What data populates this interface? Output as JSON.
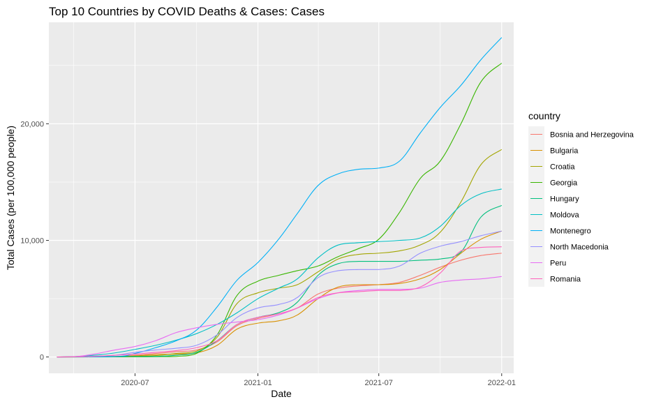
{
  "chart_data": {
    "type": "line",
    "title": "Top 10 Countries by COVID Deaths & Cases: Cases",
    "xlabel": "Date",
    "ylabel": "Total Cases (per 100,000 people)",
    "x_type": "date",
    "xlim": [
      "2020-02-23",
      "2022-01-19"
    ],
    "ylim": [
      -1400,
      28700
    ],
    "x_ticks": [
      {
        "value": "2020-07-01",
        "label": "2020-07"
      },
      {
        "value": "2021-01-01",
        "label": "2021-01"
      },
      {
        "value": "2021-07-01",
        "label": "2021-07"
      },
      {
        "value": "2022-01-01",
        "label": "2022-01"
      }
    ],
    "y_ticks": [
      {
        "value": 0,
        "label": "0"
      },
      {
        "value": 10000,
        "label": "10,000"
      },
      {
        "value": 20000,
        "label": "20,000"
      }
    ],
    "grid": true,
    "panel_background": "#ebebeb",
    "grid_color": "#ffffff",
    "legend": {
      "title": "country",
      "position": "right"
    },
    "series": [
      {
        "name": "Bosnia and Herzegovina",
        "color": "#F8766D",
        "points": [
          [
            "2020-03-06",
            0
          ],
          [
            "2020-06-01",
            50
          ],
          [
            "2020-07-01",
            150
          ],
          [
            "2020-08-01",
            300
          ],
          [
            "2020-09-01",
            450
          ],
          [
            "2020-10-01",
            600
          ],
          [
            "2020-11-01",
            1300
          ],
          [
            "2020-12-01",
            2700
          ],
          [
            "2021-01-01",
            3300
          ],
          [
            "2021-02-01",
            3700
          ],
          [
            "2021-03-01",
            4200
          ],
          [
            "2021-04-01",
            5400
          ],
          [
            "2021-05-01",
            5900
          ],
          [
            "2021-06-01",
            6100
          ],
          [
            "2021-07-01",
            6200
          ],
          [
            "2021-08-01",
            6400
          ],
          [
            "2021-09-01",
            7000
          ],
          [
            "2021-10-01",
            7700
          ],
          [
            "2021-11-01",
            8300
          ],
          [
            "2021-12-01",
            8700
          ],
          [
            "2022-01-01",
            8900
          ]
        ]
      },
      {
        "name": "Bulgaria",
        "color": "#D89000",
        "points": [
          [
            "2020-03-06",
            0
          ],
          [
            "2020-06-01",
            30
          ],
          [
            "2020-07-01",
            100
          ],
          [
            "2020-08-01",
            200
          ],
          [
            "2020-09-01",
            250
          ],
          [
            "2020-10-01",
            350
          ],
          [
            "2020-11-01",
            1000
          ],
          [
            "2020-12-01",
            2400
          ],
          [
            "2021-01-01",
            2900
          ],
          [
            "2021-02-01",
            3100
          ],
          [
            "2021-03-01",
            3600
          ],
          [
            "2021-04-01",
            5000
          ],
          [
            "2021-05-01",
            6000
          ],
          [
            "2021-06-01",
            6200
          ],
          [
            "2021-07-01",
            6200
          ],
          [
            "2021-08-01",
            6300
          ],
          [
            "2021-09-01",
            6700
          ],
          [
            "2021-10-01",
            7500
          ],
          [
            "2021-11-01",
            8900
          ],
          [
            "2021-12-01",
            10100
          ],
          [
            "2022-01-01",
            10800
          ]
        ]
      },
      {
        "name": "Croatia",
        "color": "#A3A500",
        "points": [
          [
            "2020-03-06",
            0
          ],
          [
            "2020-06-01",
            20
          ],
          [
            "2020-07-01",
            50
          ],
          [
            "2020-08-01",
            120
          ],
          [
            "2020-09-01",
            300
          ],
          [
            "2020-10-01",
            500
          ],
          [
            "2020-11-01",
            1700
          ],
          [
            "2020-12-01",
            4600
          ],
          [
            "2021-01-01",
            5500
          ],
          [
            "2021-02-01",
            5900
          ],
          [
            "2021-03-01",
            6200
          ],
          [
            "2021-04-01",
            7300
          ],
          [
            "2021-05-01",
            8400
          ],
          [
            "2021-06-01",
            8800
          ],
          [
            "2021-07-01",
            8900
          ],
          [
            "2021-08-01",
            9100
          ],
          [
            "2021-09-01",
            9600
          ],
          [
            "2021-10-01",
            10700
          ],
          [
            "2021-11-01",
            13300
          ],
          [
            "2021-12-01",
            16500
          ],
          [
            "2022-01-01",
            17800
          ]
        ]
      },
      {
        "name": "Georgia",
        "color": "#39B600",
        "points": [
          [
            "2020-03-06",
            0
          ],
          [
            "2020-06-01",
            10
          ],
          [
            "2020-07-01",
            15
          ],
          [
            "2020-08-01",
            25
          ],
          [
            "2020-09-01",
            50
          ],
          [
            "2020-10-01",
            300
          ],
          [
            "2020-11-01",
            1900
          ],
          [
            "2020-12-01",
            5300
          ],
          [
            "2021-01-01",
            6500
          ],
          [
            "2021-02-01",
            7000
          ],
          [
            "2021-03-01",
            7400
          ],
          [
            "2021-04-01",
            7800
          ],
          [
            "2021-05-01",
            8600
          ],
          [
            "2021-06-01",
            9300
          ],
          [
            "2021-07-01",
            10100
          ],
          [
            "2021-08-01",
            12400
          ],
          [
            "2021-09-01",
            15300
          ],
          [
            "2021-10-01",
            16800
          ],
          [
            "2021-11-01",
            20000
          ],
          [
            "2021-12-01",
            23600
          ],
          [
            "2022-01-01",
            25200
          ]
        ]
      },
      {
        "name": "Hungary",
        "color": "#00BF7D",
        "points": [
          [
            "2020-03-06",
            0
          ],
          [
            "2020-06-01",
            40
          ],
          [
            "2020-07-01",
            45
          ],
          [
            "2020-08-01",
            50
          ],
          [
            "2020-09-01",
            150
          ],
          [
            "2020-10-01",
            400
          ],
          [
            "2020-11-01",
            1400
          ],
          [
            "2020-12-01",
            2800
          ],
          [
            "2021-01-01",
            3400
          ],
          [
            "2021-02-01",
            3800
          ],
          [
            "2021-03-01",
            4700
          ],
          [
            "2021-04-01",
            7000
          ],
          [
            "2021-05-01",
            8000
          ],
          [
            "2021-06-01",
            8200
          ],
          [
            "2021-07-01",
            8200
          ],
          [
            "2021-08-01",
            8200
          ],
          [
            "2021-09-01",
            8300
          ],
          [
            "2021-10-01",
            8400
          ],
          [
            "2021-11-01",
            9000
          ],
          [
            "2021-12-01",
            12000
          ],
          [
            "2022-01-01",
            13000
          ]
        ]
      },
      {
        "name": "Moldova",
        "color": "#00BFC4",
        "points": [
          [
            "2020-03-06",
            0
          ],
          [
            "2020-04-01",
            30
          ],
          [
            "2020-05-01",
            150
          ],
          [
            "2020-06-01",
            350
          ],
          [
            "2020-07-01",
            650
          ],
          [
            "2020-08-01",
            1000
          ],
          [
            "2020-09-01",
            1450
          ],
          [
            "2020-10-01",
            2000
          ],
          [
            "2020-11-01",
            2800
          ],
          [
            "2020-12-01",
            3800
          ],
          [
            "2021-01-01",
            5000
          ],
          [
            "2021-02-01",
            5900
          ],
          [
            "2021-03-01",
            6700
          ],
          [
            "2021-04-01",
            8500
          ],
          [
            "2021-05-01",
            9600
          ],
          [
            "2021-06-01",
            9800
          ],
          [
            "2021-07-01",
            9900
          ],
          [
            "2021-08-01",
            10000
          ],
          [
            "2021-09-01",
            10200
          ],
          [
            "2021-10-01",
            11200
          ],
          [
            "2021-11-01",
            13000
          ],
          [
            "2021-12-01",
            14000
          ],
          [
            "2022-01-01",
            14400
          ]
        ]
      },
      {
        "name": "Montenegro",
        "color": "#00B0F6",
        "points": [
          [
            "2020-03-06",
            0
          ],
          [
            "2020-06-01",
            30
          ],
          [
            "2020-07-01",
            300
          ],
          [
            "2020-08-01",
            800
          ],
          [
            "2020-09-01",
            1400
          ],
          [
            "2020-10-01",
            2300
          ],
          [
            "2020-11-01",
            4300
          ],
          [
            "2020-12-01",
            6600
          ],
          [
            "2021-01-01",
            8100
          ],
          [
            "2021-02-01",
            10100
          ],
          [
            "2021-03-01",
            12300
          ],
          [
            "2021-04-01",
            14700
          ],
          [
            "2021-05-01",
            15700
          ],
          [
            "2021-06-01",
            16100
          ],
          [
            "2021-07-01",
            16200
          ],
          [
            "2021-08-01",
            16800
          ],
          [
            "2021-09-01",
            19200
          ],
          [
            "2021-10-01",
            21400
          ],
          [
            "2021-11-01",
            23300
          ],
          [
            "2021-12-01",
            25500
          ],
          [
            "2022-01-01",
            27400
          ]
        ]
      },
      {
        "name": "North Macedonia",
        "color": "#9590FF",
        "points": [
          [
            "2020-03-06",
            0
          ],
          [
            "2020-05-01",
            50
          ],
          [
            "2020-06-01",
            150
          ],
          [
            "2020-07-01",
            400
          ],
          [
            "2020-08-01",
            600
          ],
          [
            "2020-09-01",
            750
          ],
          [
            "2020-10-01",
            1000
          ],
          [
            "2020-11-01",
            1900
          ],
          [
            "2020-12-01",
            3400
          ],
          [
            "2021-01-01",
            4200
          ],
          [
            "2021-02-01",
            4500
          ],
          [
            "2021-03-01",
            5100
          ],
          [
            "2021-04-01",
            6800
          ],
          [
            "2021-05-01",
            7400
          ],
          [
            "2021-06-01",
            7500
          ],
          [
            "2021-07-01",
            7500
          ],
          [
            "2021-08-01",
            7800
          ],
          [
            "2021-09-01",
            8900
          ],
          [
            "2021-10-01",
            9500
          ],
          [
            "2021-11-01",
            9900
          ],
          [
            "2021-12-01",
            10400
          ],
          [
            "2022-01-01",
            10800
          ]
        ]
      },
      {
        "name": "Peru",
        "color": "#E76BF3",
        "points": [
          [
            "2020-03-06",
            0
          ],
          [
            "2020-04-01",
            20
          ],
          [
            "2020-05-01",
            250
          ],
          [
            "2020-06-01",
            600
          ],
          [
            "2020-07-01",
            900
          ],
          [
            "2020-08-01",
            1400
          ],
          [
            "2020-09-01",
            2100
          ],
          [
            "2020-10-01",
            2500
          ],
          [
            "2020-11-01",
            2800
          ],
          [
            "2020-12-01",
            3000
          ],
          [
            "2021-01-01",
            3200
          ],
          [
            "2021-02-01",
            3600
          ],
          [
            "2021-03-01",
            4200
          ],
          [
            "2021-04-01",
            5000
          ],
          [
            "2021-05-01",
            5500
          ],
          [
            "2021-06-01",
            5700
          ],
          [
            "2021-07-01",
            5800
          ],
          [
            "2021-08-01",
            5800
          ],
          [
            "2021-09-01",
            5900
          ],
          [
            "2021-10-01",
            6400
          ],
          [
            "2021-11-01",
            6600
          ],
          [
            "2021-12-01",
            6700
          ],
          [
            "2022-01-01",
            6900
          ]
        ]
      },
      {
        "name": "Romania",
        "color": "#FF62BC",
        "points": [
          [
            "2020-03-06",
            0
          ],
          [
            "2020-05-01",
            60
          ],
          [
            "2020-06-01",
            150
          ],
          [
            "2020-07-01",
            250
          ],
          [
            "2020-08-01",
            400
          ],
          [
            "2020-09-01",
            550
          ],
          [
            "2020-10-01",
            800
          ],
          [
            "2020-11-01",
            1400
          ],
          [
            "2020-12-01",
            2800
          ],
          [
            "2021-01-01",
            3400
          ],
          [
            "2021-02-01",
            3700
          ],
          [
            "2021-03-01",
            4200
          ],
          [
            "2021-04-01",
            5100
          ],
          [
            "2021-05-01",
            5500
          ],
          [
            "2021-06-01",
            5600
          ],
          [
            "2021-07-01",
            5700
          ],
          [
            "2021-08-01",
            5700
          ],
          [
            "2021-09-01",
            6000
          ],
          [
            "2021-10-01",
            7200
          ],
          [
            "2021-11-01",
            9100
          ],
          [
            "2021-12-01",
            9400
          ],
          [
            "2022-01-01",
            9450
          ]
        ]
      }
    ]
  }
}
